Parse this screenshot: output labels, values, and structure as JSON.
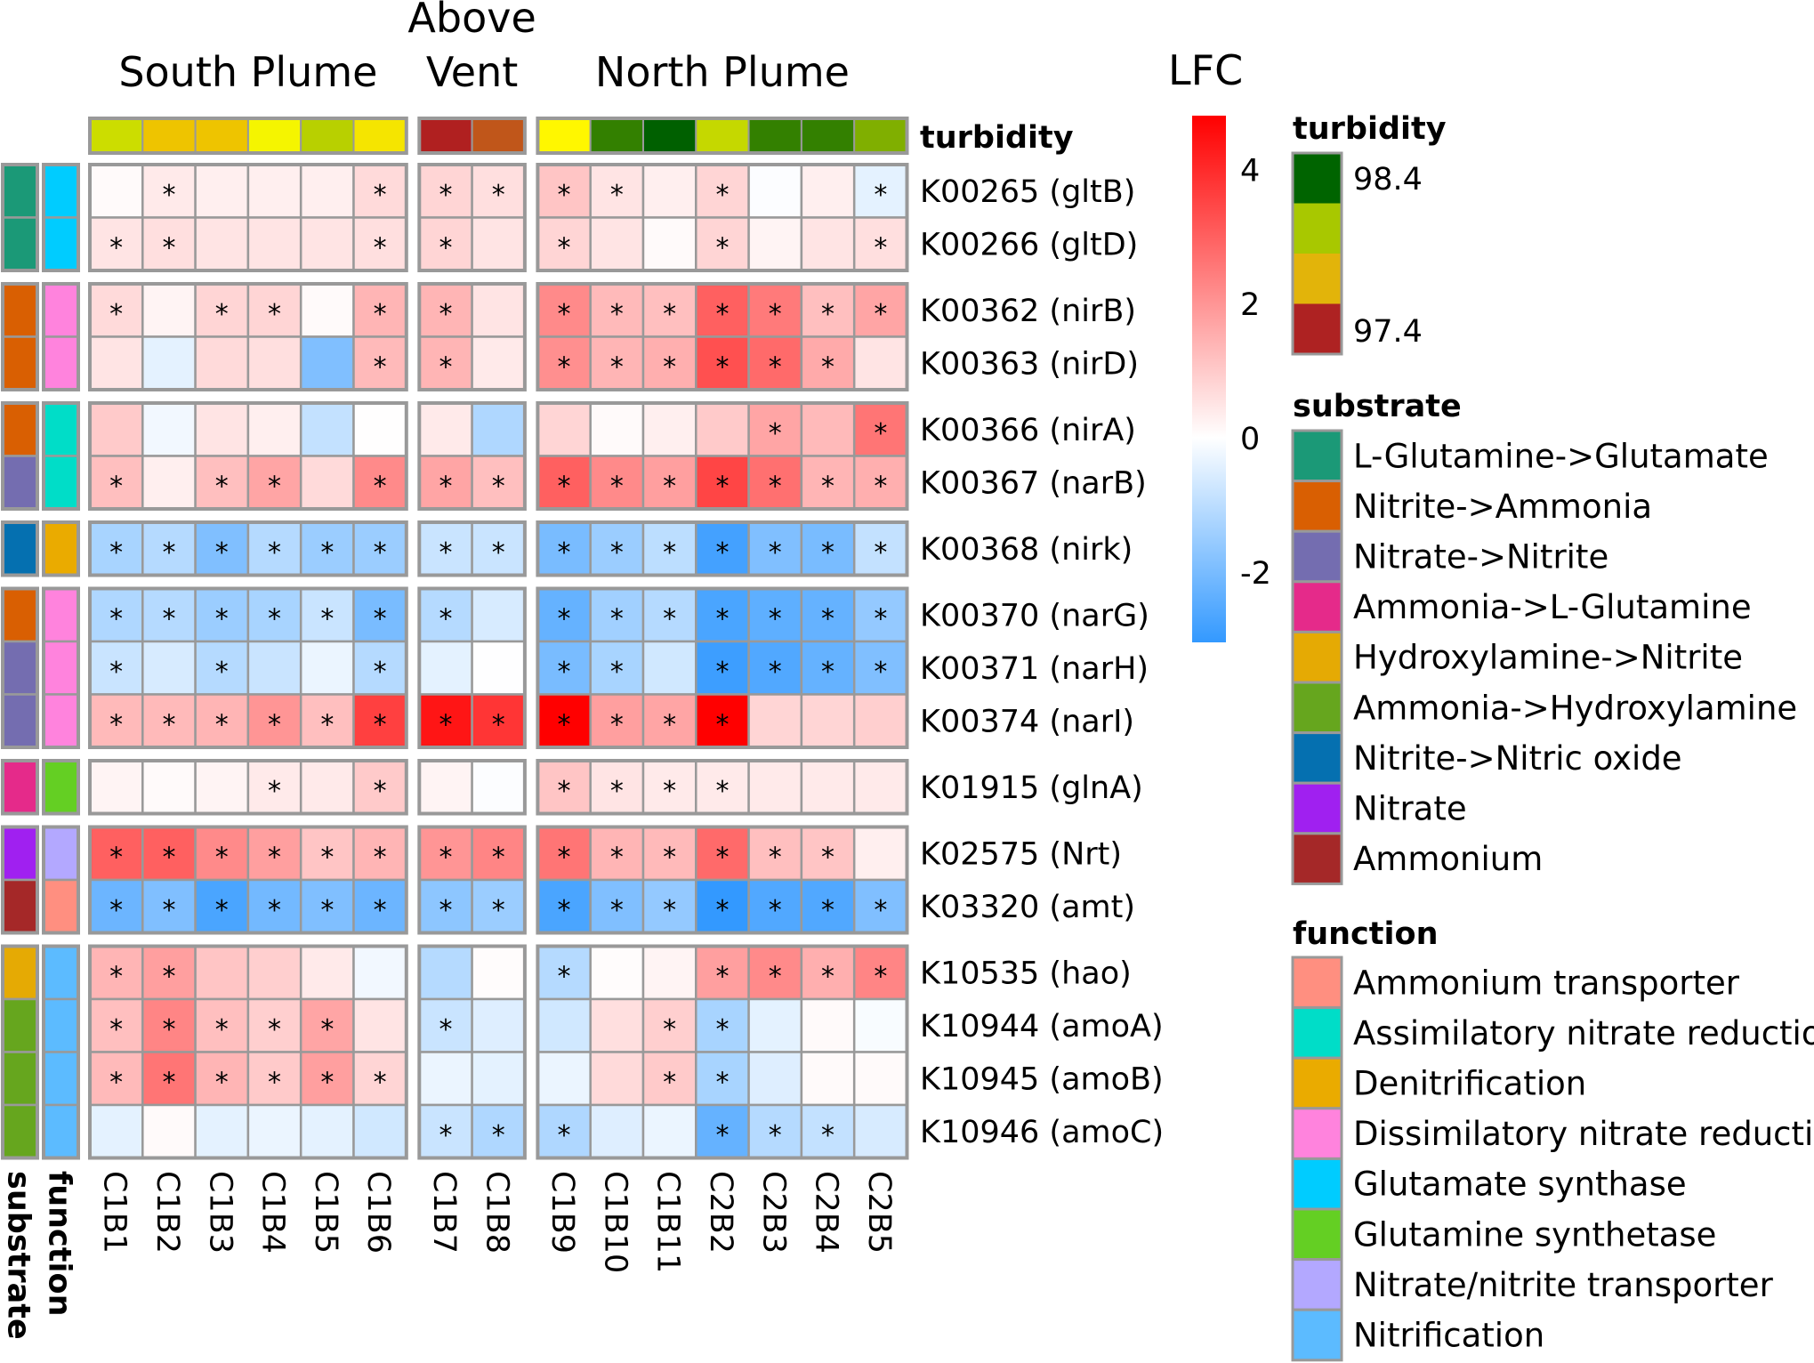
{
  "chart_data": {
    "type": "heatmap",
    "title": "",
    "column_groups": [
      {
        "title_lines": [
          "South Plume"
        ],
        "size": 6
      },
      {
        "title_lines": [
          "Above",
          "Vent"
        ],
        "size": 2
      },
      {
        "title_lines": [
          "North Plume"
        ],
        "size": 7
      }
    ],
    "columns": [
      {
        "label": "C1B1",
        "turbidity_color": "#CCDD00"
      },
      {
        "label": "C1B2",
        "turbidity_color": "#EEC400"
      },
      {
        "label": "C1B3",
        "turbidity_color": "#EEC400"
      },
      {
        "label": "C1B4",
        "turbidity_color": "#F5F500"
      },
      {
        "label": "C1B5",
        "turbidity_color": "#B8D000"
      },
      {
        "label": "C1B6",
        "turbidity_color": "#F5E500"
      },
      {
        "label": "C1B7",
        "turbidity_color": "#B02020"
      },
      {
        "label": "C1B8",
        "turbidity_color": "#C0561A"
      },
      {
        "label": "C1B9",
        "turbidity_color": "#FFF700"
      },
      {
        "label": "C1B10",
        "turbidity_color": "#338000"
      },
      {
        "label": "C1B11",
        "turbidity_color": "#006000"
      },
      {
        "label": "C2B2",
        "turbidity_color": "#C5D800"
      },
      {
        "label": "C2B3",
        "turbidity_color": "#338000"
      },
      {
        "label": "C2B4",
        "turbidity_color": "#338000"
      },
      {
        "label": "C2B5",
        "turbidity_color": "#80AF00"
      }
    ],
    "row_group_sizes": [
      2,
      2,
      2,
      1,
      3,
      1,
      2,
      4
    ],
    "rows": [
      {
        "label": "K00265 (gltB)",
        "substrate": 0,
        "function": 4
      },
      {
        "label": "K00266 (gltD)",
        "substrate": 0,
        "function": 4
      },
      {
        "label": "K00362 (nirB)",
        "substrate": 1,
        "function": 3
      },
      {
        "label": "K00363 (nirD)",
        "substrate": 1,
        "function": 3
      },
      {
        "label": "K00366 (nirA)",
        "substrate": 1,
        "function": 1
      },
      {
        "label": "K00367 (narB)",
        "substrate": 2,
        "function": 1
      },
      {
        "label": "K00368 (nirk)",
        "substrate": 6,
        "function": 2
      },
      {
        "label": "K00370 (narG)",
        "substrate": 1,
        "function": 3
      },
      {
        "label": "K00371 (narH)",
        "substrate": 2,
        "function": 3
      },
      {
        "label": "K00374 (narI)",
        "substrate": 2,
        "function": 3
      },
      {
        "label": "K01915 (glnA)",
        "substrate": 3,
        "function": 5
      },
      {
        "label": "K02575 (Nrt)",
        "substrate": 7,
        "function": 6
      },
      {
        "label": "K03320 (amt)",
        "substrate": 8,
        "function": 0
      },
      {
        "label": "K10535 (hao)",
        "substrate": 4,
        "function": 7
      },
      {
        "label": "K10944 (amoA)",
        "substrate": 5,
        "function": 7
      },
      {
        "label": "K10945 (amoB)",
        "substrate": 5,
        "function": 7
      },
      {
        "label": "K10946 (amoC)",
        "substrate": 5,
        "function": 7
      }
    ],
    "values": [
      [
        0.1,
        0.4,
        0.3,
        0.3,
        0.3,
        0.7,
        0.8,
        0.6,
        1.1,
        0.5,
        0.3,
        0.8,
        -0.05,
        0.3,
        -0.4
      ],
      [
        0.5,
        0.6,
        0.5,
        0.5,
        0.5,
        0.6,
        0.8,
        0.5,
        0.8,
        0.5,
        0.1,
        0.8,
        0.2,
        0.5,
        0.6
      ],
      [
        0.7,
        0.2,
        0.8,
        0.8,
        0.1,
        1.4,
        1.4,
        0.5,
        2.2,
        1.3,
        1.2,
        3.0,
        2.5,
        1.2,
        1.7
      ],
      [
        0.5,
        -0.4,
        0.7,
        0.6,
        -1.9,
        1.3,
        1.4,
        0.4,
        2.1,
        1.4,
        1.5,
        3.3,
        2.8,
        1.6,
        0.5
      ],
      [
        1.0,
        -0.2,
        0.5,
        0.3,
        -0.9,
        0.02,
        0.4,
        -1.2,
        0.8,
        0.1,
        0.3,
        1.0,
        1.7,
        1.3,
        2.6
      ],
      [
        1.2,
        0.3,
        1.2,
        1.7,
        0.7,
        2.2,
        1.7,
        1.2,
        3.0,
        2.2,
        1.8,
        3.5,
        2.7,
        1.4,
        1.5
      ],
      [
        -1.3,
        -1.1,
        -1.9,
        -1.1,
        -1.5,
        -1.5,
        -0.8,
        -0.8,
        -2.0,
        -1.5,
        -1.0,
        -2.8,
        -1.9,
        -2.0,
        -0.9
      ],
      [
        -1.2,
        -1.1,
        -1.5,
        -1.3,
        -0.8,
        -2.0,
        -1.1,
        -0.6,
        -2.3,
        -1.4,
        -1.1,
        -2.7,
        -2.4,
        -2.3,
        -1.6
      ],
      [
        -0.8,
        -0.6,
        -1.1,
        -0.8,
        -0.3,
        -1.1,
        -0.4,
        -0.02,
        -2.0,
        -1.3,
        -0.7,
        -2.9,
        -2.6,
        -2.3,
        -1.9
      ],
      [
        1.3,
        1.3,
        1.4,
        2.0,
        1.2,
        3.6,
        4.4,
        3.8,
        4.9,
        1.8,
        1.7,
        4.9,
        0.8,
        0.8,
        0.9
      ],
      [
        0.2,
        0.1,
        0.2,
        0.4,
        0.4,
        1.0,
        0.2,
        -0.05,
        1.1,
        0.5,
        0.4,
        0.4,
        0.4,
        0.4,
        0.4
      ],
      [
        3.0,
        3.0,
        2.2,
        1.8,
        1.1,
        1.4,
        2.0,
        2.3,
        2.6,
        1.4,
        1.3,
        2.8,
        1.2,
        1.1,
        0.3
      ],
      [
        -2.2,
        -1.9,
        -2.7,
        -2.1,
        -1.9,
        -2.2,
        -1.7,
        -1.5,
        -2.7,
        -1.9,
        -1.6,
        -3.5,
        -2.6,
        -2.6,
        -1.9
      ],
      [
        1.4,
        1.8,
        1.1,
        0.9,
        0.4,
        -0.2,
        -1.1,
        0.05,
        -1.1,
        0.05,
        0.2,
        1.8,
        2.2,
        1.5,
        2.3
      ],
      [
        1.2,
        2.3,
        1.2,
        0.9,
        1.7,
        0.5,
        -0.8,
        -0.5,
        -0.7,
        0.6,
        0.9,
        -1.3,
        -0.4,
        0.1,
        -0.1
      ],
      [
        1.3,
        2.6,
        1.4,
        1.0,
        1.8,
        0.8,
        -0.3,
        -0.4,
        -0.3,
        0.7,
        1.0,
        -1.3,
        -0.5,
        0.1,
        0.1
      ],
      [
        -0.4,
        0.1,
        -0.4,
        -0.3,
        -0.4,
        -0.7,
        -0.8,
        -1.2,
        -1.2,
        -0.5,
        -0.3,
        -2.3,
        -1.1,
        -0.9,
        -0.6
      ]
    ],
    "significant": [
      [
        0,
        1,
        0,
        0,
        0,
        1,
        1,
        1,
        1,
        1,
        0,
        1,
        0,
        0,
        1
      ],
      [
        1,
        1,
        0,
        0,
        0,
        1,
        1,
        0,
        1,
        0,
        0,
        1,
        0,
        0,
        1
      ],
      [
        1,
        0,
        1,
        1,
        0,
        1,
        1,
        0,
        1,
        1,
        1,
        1,
        1,
        1,
        1
      ],
      [
        0,
        0,
        0,
        0,
        0,
        1,
        1,
        0,
        1,
        1,
        1,
        1,
        1,
        1,
        0
      ],
      [
        0,
        0,
        0,
        0,
        0,
        0,
        0,
        0,
        0,
        0,
        0,
        0,
        1,
        0,
        1
      ],
      [
        1,
        0,
        1,
        1,
        0,
        1,
        1,
        1,
        1,
        1,
        1,
        1,
        1,
        1,
        1
      ],
      [
        1,
        1,
        1,
        1,
        1,
        1,
        1,
        1,
        1,
        1,
        1,
        1,
        1,
        1,
        1
      ],
      [
        1,
        1,
        1,
        1,
        1,
        1,
        1,
        0,
        1,
        1,
        1,
        1,
        1,
        1,
        1
      ],
      [
        1,
        0,
        1,
        0,
        0,
        1,
        0,
        0,
        1,
        1,
        0,
        1,
        1,
        1,
        1
      ],
      [
        1,
        1,
        1,
        1,
        1,
        1,
        1,
        1,
        1,
        1,
        1,
        1,
        0,
        0,
        0
      ],
      [
        0,
        0,
        0,
        1,
        0,
        1,
        0,
        0,
        1,
        1,
        1,
        1,
        0,
        0,
        0
      ],
      [
        1,
        1,
        1,
        1,
        1,
        1,
        1,
        1,
        1,
        1,
        1,
        1,
        1,
        1,
        0
      ],
      [
        1,
        1,
        1,
        1,
        1,
        1,
        1,
        1,
        1,
        1,
        1,
        1,
        1,
        1,
        1
      ],
      [
        1,
        1,
        0,
        0,
        0,
        0,
        0,
        0,
        1,
        0,
        0,
        1,
        1,
        1,
        1
      ],
      [
        1,
        1,
        1,
        1,
        1,
        0,
        1,
        0,
        0,
        0,
        1,
        1,
        0,
        0,
        0
      ],
      [
        1,
        1,
        1,
        1,
        1,
        1,
        0,
        0,
        0,
        0,
        1,
        1,
        0,
        0,
        0
      ],
      [
        0,
        0,
        0,
        0,
        0,
        0,
        1,
        1,
        1,
        0,
        0,
        1,
        1,
        1,
        0
      ]
    ],
    "significance_marker": "*",
    "turbidity_annotation_label": "turbidity",
    "row_annotation_labels": [
      "substrate",
      "function"
    ],
    "color_scale": {
      "title": "LFC",
      "min": -3.05,
      "max": 4.8,
      "low_color": "#3399FF",
      "mid_color": "#FFFFFF",
      "high_color": "#FF0000",
      "ticks": [
        4,
        2,
        0,
        -2
      ],
      "tick_labels": [
        "4",
        "2",
        "0",
        "-2"
      ]
    },
    "legends": {
      "turbidity": {
        "title": "turbidity",
        "colors": [
          "#006400",
          "#A8C800",
          "#E2B40A",
          "#AE2222"
        ],
        "labels": [
          "98.4",
          "97.4"
        ]
      },
      "substrate": {
        "title": "substrate",
        "items": [
          {
            "label": "L-Glutamine->Glutamate",
            "color": "#1B9977"
          },
          {
            "label": "Nitrite->Ammonia",
            "color": "#D95F02"
          },
          {
            "label": "Nitrate->Nitrite",
            "color": "#746DB0"
          },
          {
            "label": "Ammonia->L-Glutamine",
            "color": "#E52A8A"
          },
          {
            "label": "Hydroxylamine->Nitrite",
            "color": "#E5AA04"
          },
          {
            "label": "Ammonia->Hydroxylamine",
            "color": "#66A61E"
          },
          {
            "label": "Nitrite->Nitric oxide",
            "color": "#0570B0"
          },
          {
            "label": "Nitrate",
            "color": "#A020F0"
          },
          {
            "label": "Ammonium",
            "color": "#A52828"
          }
        ]
      },
      "function": {
        "title": "function",
        "items": [
          {
            "label": "Ammonium transporter",
            "color": "#FF8F80"
          },
          {
            "label": "Assimilatory nitrate reduction",
            "color": "#00DDC8"
          },
          {
            "label": "Denitrification",
            "color": "#EAAB00"
          },
          {
            "label": "Dissimilatory nitrate reduction",
            "color": "#FF83DD"
          },
          {
            "label": "Glutamate synthase",
            "color": "#00CCFF"
          },
          {
            "label": "Glutamine synthetase",
            "color": "#64CF23"
          },
          {
            "label": "Nitrate/nitrite transporter",
            "color": "#B3A8FF"
          },
          {
            "label": "Nitrification",
            "color": "#5CBBFF"
          }
        ]
      }
    }
  }
}
